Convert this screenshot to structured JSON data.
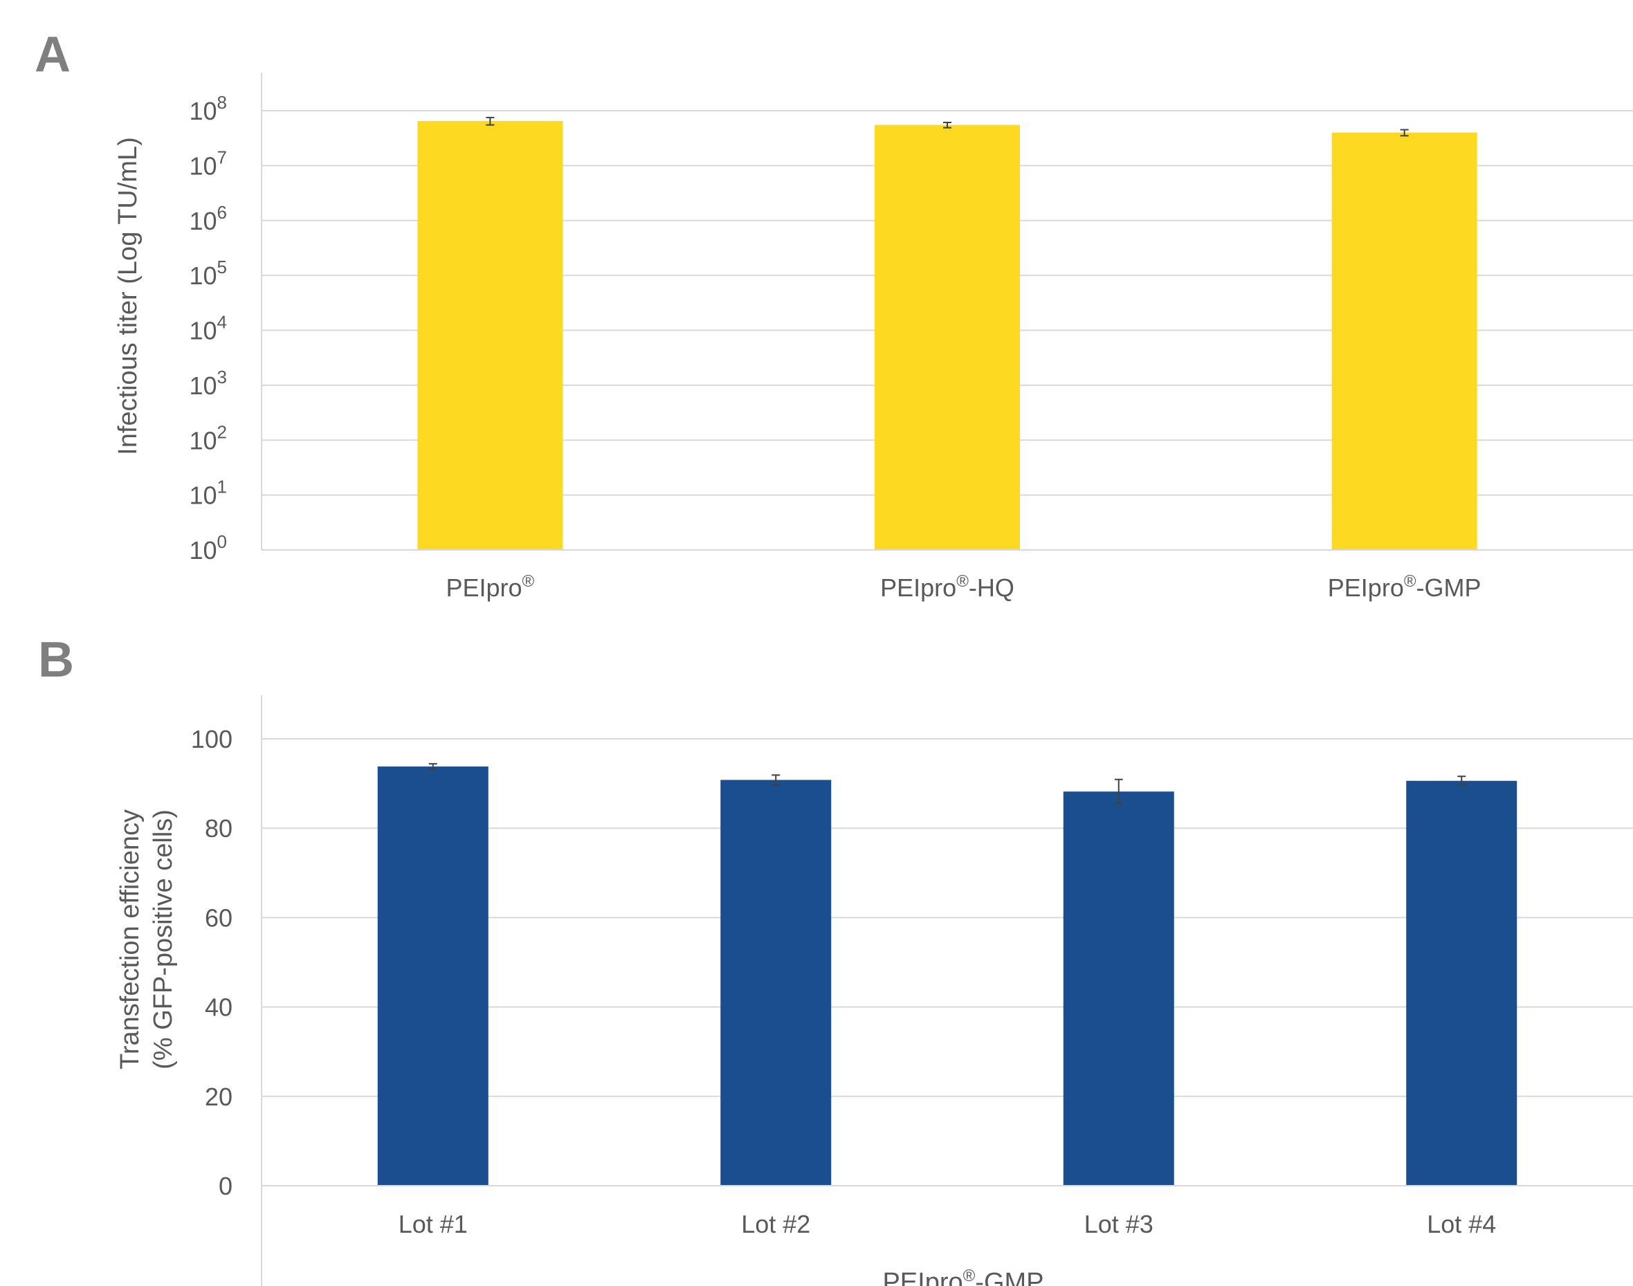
{
  "chart_data": [
    {
      "panel": "A",
      "type": "bar",
      "categories": [
        "PEIpro",
        "PEIpro",
        "PEIpro"
      ],
      "category_suffixes": [
        "",
        "-HQ",
        "-GMP"
      ],
      "category_superscript": "®",
      "values": [
        65000000,
        55000000,
        40000000
      ],
      "errors": [
        10000000,
        6000000,
        5000000
      ],
      "ylabel": "Infectious titer (Log TU/mL)",
      "yscale": "log",
      "ylim": [
        1,
        100000000
      ],
      "yticks": [
        {
          "base": "10",
          "exp": "0",
          "value": 1
        },
        {
          "base": "10",
          "exp": "1",
          "value": 10
        },
        {
          "base": "10",
          "exp": "2",
          "value": 100
        },
        {
          "base": "10",
          "exp": "3",
          "value": 1000
        },
        {
          "base": "10",
          "exp": "4",
          "value": 10000
        },
        {
          "base": "10",
          "exp": "5",
          "value": 100000
        },
        {
          "base": "10",
          "exp": "6",
          "value": 1000000
        },
        {
          "base": "10",
          "exp": "7",
          "value": 10000000
        },
        {
          "base": "10",
          "exp": "8",
          "value": 100000000
        }
      ],
      "grid": true,
      "color": "#FDD922"
    },
    {
      "panel": "B",
      "type": "bar",
      "categories": [
        "Lot #1",
        "Lot #2",
        "Lot #3",
        "Lot #4"
      ],
      "values": [
        93.8,
        90.8,
        88.2,
        90.6
      ],
      "errors": [
        0.6,
        1.1,
        2.7,
        1.0
      ],
      "ylabel_lines": [
        "Transfection efficiency",
        "(% GFP-positive cells)"
      ],
      "xlabel_prefix": "PEIpro",
      "xlabel_superscript": "®",
      "xlabel_suffix": "-GMP",
      "ylim": [
        0,
        100
      ],
      "yticks": [
        0,
        20,
        40,
        60,
        80,
        100
      ],
      "grid": true,
      "color": "#1B4E8E"
    }
  ]
}
